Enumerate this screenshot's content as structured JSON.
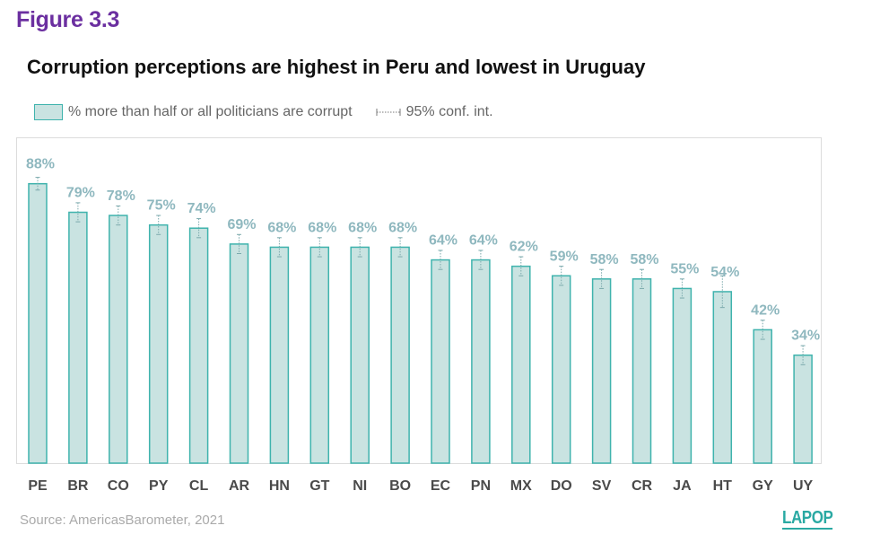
{
  "figure_label": "Figure 3.3",
  "title": "Corruption perceptions are highest in Peru and lowest in Uruguay",
  "legend": {
    "bar_label": "% more than half or all politicians are corrupt",
    "ci_label": "95% conf. int."
  },
  "source": "Source: AmericasBarometer, 2021",
  "logo": "LAPOP",
  "colors": {
    "bar_fill": "#c9e3e1",
    "bar_stroke": "#3fb3ad",
    "label": "#8fb8bf",
    "figure_label": "#6b2fa0"
  },
  "chart_data": {
    "type": "bar",
    "categories": [
      "PE",
      "BR",
      "CO",
      "PY",
      "CL",
      "AR",
      "HN",
      "GT",
      "NI",
      "BO",
      "EC",
      "PN",
      "MX",
      "DO",
      "SV",
      "CR",
      "JA",
      "HT",
      "GY",
      "UY"
    ],
    "series": [
      {
        "name": "% more than half or all politicians are corrupt",
        "values": [
          88,
          79,
          78,
          75,
          74,
          69,
          68,
          68,
          68,
          68,
          64,
          64,
          62,
          59,
          58,
          58,
          55,
          54,
          42,
          34
        ],
        "labels": [
          "88%",
          "79%",
          "78%",
          "75%",
          "74%",
          "69%",
          "68%",
          "68%",
          "68%",
          "68%",
          "64%",
          "64%",
          "62%",
          "59%",
          "58%",
          "58%",
          "55%",
          "54%",
          "42%",
          "34%"
        ]
      }
    ],
    "ci_low": [
      86,
      76,
      75,
      72,
      71,
      66,
      65,
      65,
      65,
      65,
      61,
      61,
      59,
      56,
      55,
      55,
      52,
      49,
      39,
      31
    ],
    "ci_high": [
      90,
      82,
      81,
      78,
      77,
      72,
      71,
      71,
      71,
      71,
      67,
      67,
      65,
      62,
      61,
      61,
      58,
      59,
      45,
      37
    ],
    "ylim": [
      0,
      100
    ],
    "grid": false
  }
}
